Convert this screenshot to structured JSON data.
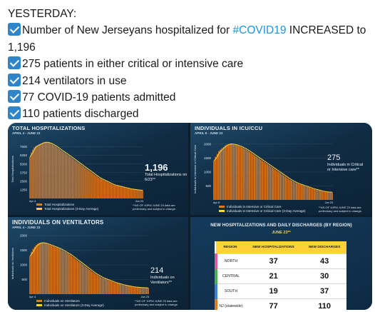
{
  "tweet": {
    "intro": "YESTERDAY:",
    "line1_before": "Number of New Jerseyans hospitalized for ",
    "line1_hashtag": "#COVID19",
    "line1_after": " INCREASED to 1,196",
    "line2": "275 patients in either critical or intensive care",
    "line3": "214 ventilators in use",
    "line4": "77 COVID-19 patients admitted",
    "line5": "110 patients discharged",
    "check_icon": "check-mark-icon",
    "check_color": "#2f85c7"
  },
  "colors": {
    "bar": "#e07a1f",
    "avg_line": "#ffd23a",
    "highlight": "#ffd23a",
    "panel_bg": "#102c44"
  },
  "panels": {
    "hosp": {
      "title": "TOTAL HOSPITALIZATIONS",
      "subtitle": "APRIL 4 - JUNE 23",
      "ylabel": "Total Hospitalizations",
      "callout_value": "1,196",
      "callout_text": "Total Hospitalizations on 6/23**",
      "legend": [
        "Total Hospitalizations",
        "Total Hospitalizations (3-Day Average)"
      ],
      "note": "**AS OF 10PM JUNE 23 data are preliminary and subject to change."
    },
    "icu": {
      "title": "INDIVIDUALS IN ICU/CCU",
      "subtitle": "APRIL 8 - JUNE 23",
      "ylabel": "Individuals in Intensive or Critical Care",
      "callout_value": "275",
      "callout_text": "Individuals in Critical or Intensive care**",
      "legend": [
        "Individuals in Intensive or Critical Care",
        "Individuals in Intensive or Critical Care (3-Day Average)"
      ],
      "note": "**AS OF 10PM JUNE 23 data are preliminary and subject to change."
    },
    "vent": {
      "title": "INDIVIDUALS ON VENTILATORS",
      "subtitle": "APRIL 4 - JUNE 23",
      "ylabel": "Individuals on Ventilators",
      "callout_value": "214",
      "callout_text": "Individuals on Ventilators**",
      "legend": [
        "Individuals on Ventilators",
        "Individuals on Ventilators (3-Day Average)"
      ],
      "note": "**AS OF 10PM JUNE 23 data are preliminary and subject to change."
    },
    "region": {
      "title": "NEW HOSPITALIZATIONS AND DAILY DISCHARGES (BY REGION)",
      "date": "JUNE 23**",
      "columns": [
        "REGION",
        "NEW HOSPITALIZATIONS",
        "NEW DISCHARGES"
      ],
      "rows": [
        {
          "region": "NORTH",
          "new_hosp": "37",
          "discharges": "43",
          "accent": "#e05aa0"
        },
        {
          "region": "CENTRAL",
          "new_hosp": "21",
          "discharges": "30",
          "accent": "#4caf50"
        },
        {
          "region": "SOUTH",
          "new_hosp": "19",
          "discharges": "37",
          "accent": "#3f7fd6"
        },
        {
          "region": "NJ (statewide)",
          "new_hosp": "77",
          "discharges": "110",
          "accent": "#e07a1f"
        }
      ]
    }
  },
  "chart_data": [
    {
      "type": "bar",
      "title": "TOTAL HOSPITALIZATIONS",
      "ylabel": "Total Hospitalizations",
      "yticks": [
        "1250",
        "2500",
        "3750",
        "5000",
        "6250",
        "7500"
      ],
      "ylim": [
        0,
        8500
      ],
      "x_start": "Apr 4",
      "x_end": "Jun 23",
      "values": [
        6000,
        6700,
        7100,
        7400,
        7600,
        7700,
        7800,
        7900,
        8000,
        8100,
        8150,
        8200,
        8150,
        8100,
        8050,
        7950,
        7850,
        7750,
        7600,
        7450,
        7300,
        7150,
        7000,
        6850,
        6700,
        6600,
        6450,
        6300,
        6150,
        6000,
        5850,
        5700,
        5550,
        5400,
        5250,
        5100,
        4950,
        4800,
        4650,
        4500,
        4350,
        4200,
        4050,
        3900,
        3750,
        3600,
        3450,
        3300,
        3150,
        3000,
        2900,
        2800,
        2700,
        2600,
        2500,
        2400,
        2300,
        2200,
        2100,
        2000,
        1950,
        1900,
        1850,
        1800,
        1750,
        1700,
        1650,
        1600,
        1550,
        1500,
        1450,
        1400,
        1370,
        1340,
        1310,
        1280,
        1250,
        1230,
        1210,
        1200,
        1196
      ]
    },
    {
      "type": "bar",
      "title": "INDIVIDUALS IN ICU/CCU",
      "ylabel": "Individuals in Intensive or Critical Care",
      "yticks": [
        "500",
        "1000",
        "1500",
        "2000"
      ],
      "ylim": [
        0,
        2200
      ],
      "x_start": "Apr 8",
      "x_end": "Jun 23",
      "values": [
        1400,
        1550,
        1650,
        1750,
        1800,
        1850,
        1900,
        1950,
        1980,
        2000,
        2020,
        2000,
        1990,
        1980,
        1960,
        1940,
        1920,
        1890,
        1860,
        1830,
        1800,
        1760,
        1720,
        1680,
        1640,
        1600,
        1560,
        1520,
        1480,
        1440,
        1400,
        1360,
        1320,
        1280,
        1240,
        1200,
        1160,
        1120,
        1080,
        1040,
        1000,
        960,
        920,
        880,
        840,
        800,
        760,
        720,
        690,
        660,
        630,
        600,
        580,
        560,
        540,
        520,
        500,
        480,
        460,
        440,
        420,
        400,
        385,
        370,
        355,
        340,
        325,
        310,
        300,
        290,
        285,
        280,
        277,
        275
      ]
    },
    {
      "type": "bar",
      "title": "INDIVIDUALS ON VENTILATORS",
      "ylabel": "Individuals on Ventilators",
      "yticks": [
        "500",
        "1000",
        "1500",
        "2000"
      ],
      "ylim": [
        0,
        2100
      ],
      "x_start": "Apr 4",
      "x_end": "Jun 23",
      "values": [
        1300,
        1450,
        1550,
        1620,
        1680,
        1720,
        1750,
        1760,
        1760,
        1750,
        1740,
        1720,
        1700,
        1680,
        1660,
        1640,
        1620,
        1600,
        1580,
        1560,
        1530,
        1500,
        1470,
        1440,
        1410,
        1380,
        1350,
        1310,
        1270,
        1230,
        1190,
        1150,
        1110,
        1070,
        1030,
        990,
        950,
        910,
        870,
        830,
        790,
        750,
        710,
        680,
        650,
        620,
        590,
        560,
        540,
        520,
        500,
        480,
        460,
        440,
        420,
        400,
        385,
        370,
        355,
        340,
        325,
        310,
        300,
        290,
        280,
        270,
        260,
        250,
        245,
        240,
        235,
        230,
        226,
        222,
        219,
        217,
        215,
        214
      ]
    }
  ]
}
